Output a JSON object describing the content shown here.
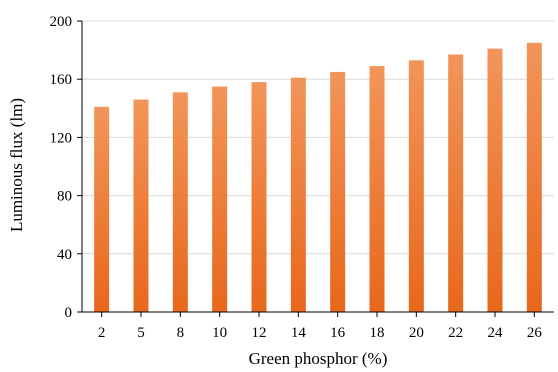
{
  "chart_data": {
    "type": "bar",
    "categories": [
      "2",
      "5",
      "8",
      "10",
      "12",
      "14",
      "16",
      "18",
      "20",
      "22",
      "24",
      "26"
    ],
    "values": [
      141,
      146,
      151,
      155,
      158,
      161,
      165,
      169,
      173,
      177,
      181,
      185
    ],
    "xlabel": "Green phosphor (%)",
    "ylabel": "Luminous flux (lm)",
    "ylim": [
      0,
      200
    ],
    "yticks": [
      0,
      40,
      80,
      120,
      160,
      200
    ],
    "grid": true,
    "colors": {
      "bar_top": "#f2955a",
      "bar_bottom": "#e8671b",
      "grid": "#d9d9d9",
      "axis": "#000000"
    }
  }
}
